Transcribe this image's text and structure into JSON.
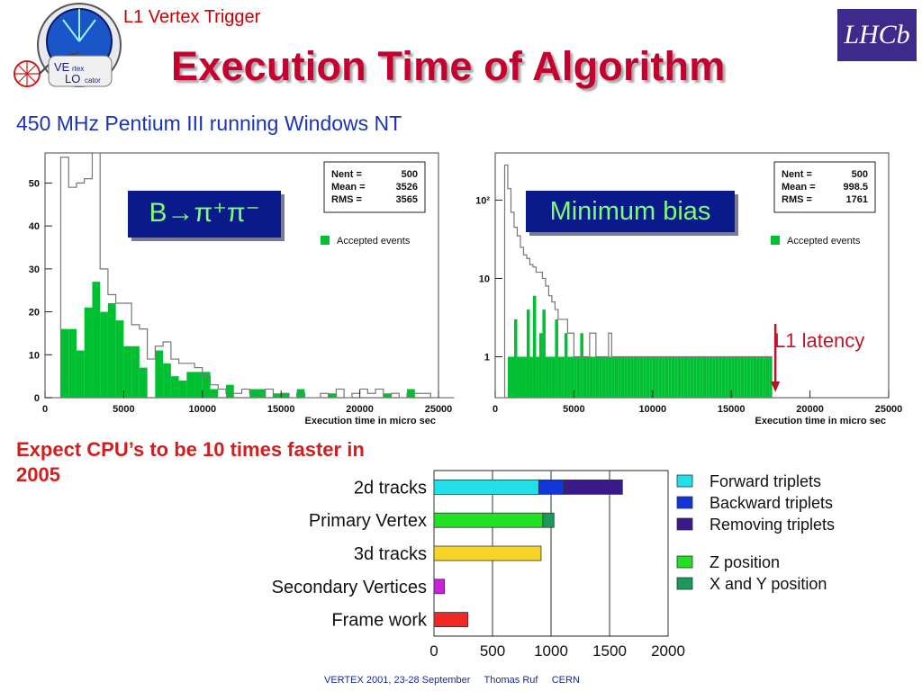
{
  "header": {
    "subtitle": "L1 Vertex Trigger",
    "title": "Execution Time of Algorithm",
    "logo_left_text": [
      "VE",
      "rtex",
      "LO",
      "cator"
    ],
    "logo_right_text": "LHCb"
  },
  "machine_note": "450 MHz Pentium III running Windows NT",
  "cpu_note": "Expect CPU’s to be 10 times faster in 2005",
  "latency_label": "L1 latency",
  "footer": "VERTEX 2001, 23-28 September     Thomas Ruf     CERN",
  "chart_data": [
    {
      "type": "bar",
      "subtype": "histogram",
      "panel_tag": "B→π⁺π⁻",
      "xlabel": "Execution time in micro sec",
      "xlim": [
        0,
        25000
      ],
      "ylim": [
        0,
        57
      ],
      "x_ticks": [
        "0",
        "5000",
        "10000",
        "15000",
        "20000",
        "25000"
      ],
      "y_ticks": [
        "0",
        "10",
        "20",
        "30",
        "40",
        "50"
      ],
      "stats": {
        "Nent": "500",
        "Mean": "3526",
        "RMS": "3565"
      },
      "legend": [
        "Accepted events"
      ],
      "colors": {
        "accepted": "#00c032",
        "outline": "#777777"
      },
      "bin_width": 500,
      "x_start": 0,
      "series": [
        {
          "name": "All events",
          "style": "outline",
          "values": [
            0,
            0,
            56,
            49,
            50,
            51,
            57,
            30,
            24,
            22,
            22,
            17,
            16,
            9,
            12,
            13,
            9,
            8,
            8,
            7,
            5,
            3,
            2,
            1,
            1,
            2,
            1,
            0,
            2,
            0,
            1,
            0,
            1,
            0,
            0,
            1,
            0,
            2,
            0,
            1,
            2,
            1,
            2,
            0,
            1,
            0,
            1,
            1,
            1,
            0,
            0,
            0
          ]
        },
        {
          "name": "Accepted events",
          "style": "fill",
          "values": [
            0,
            0,
            16,
            16,
            11,
            21,
            27,
            20,
            22,
            18,
            12,
            12,
            7,
            0,
            11,
            8,
            5,
            4,
            6,
            6,
            6,
            2,
            0,
            3,
            0,
            0,
            2,
            2,
            0,
            1,
            1,
            0,
            2,
            0,
            0,
            0,
            1,
            0,
            0,
            0,
            0,
            0,
            0,
            1,
            0,
            0,
            2,
            0,
            0,
            0,
            0,
            0
          ]
        }
      ]
    },
    {
      "type": "bar",
      "subtype": "histogram",
      "panel_tag": "Minimum bias",
      "xlabel": "Execution time in micro sec",
      "xlim": [
        0,
        25000
      ],
      "y_scale": "log",
      "ylim": [
        0.3,
        400
      ],
      "x_ticks": [
        "0",
        "5000",
        "10000",
        "15000",
        "20000",
        "25000"
      ],
      "y_ticks": [
        "1",
        "10",
        "10²"
      ],
      "stats": {
        "Nent": "500",
        "Mean": "998.5",
        "RMS": "1761"
      },
      "legend": [
        "Accepted events"
      ],
      "colors": {
        "accepted": "#00c032",
        "outline": "#777777"
      },
      "bin_width": 200,
      "x_start": 0,
      "series": [
        {
          "name": "All events",
          "style": "outline",
          "values": [
            0,
            0,
            0,
            280,
            140,
            70,
            45,
            35,
            25,
            20,
            18,
            15,
            14,
            12,
            12,
            10,
            8,
            6,
            5,
            4,
            3,
            3,
            3,
            2,
            2,
            1,
            1,
            1,
            1,
            1,
            2,
            2,
            1,
            1,
            1,
            1,
            2,
            1,
            1,
            1,
            1,
            1,
            1,
            1,
            1,
            1,
            1,
            1,
            1,
            1,
            1,
            1,
            1,
            1,
            1,
            1,
            1,
            1,
            1,
            1,
            1,
            1,
            1,
            1,
            1,
            1,
            1,
            1,
            1,
            1,
            1,
            1,
            1,
            1,
            1,
            1,
            1,
            1,
            1,
            1,
            1,
            1,
            1,
            1,
            1,
            1,
            1,
            1
          ]
        },
        {
          "name": "Accepted events",
          "style": "fill",
          "values": [
            0,
            0,
            0,
            0,
            1,
            1,
            3,
            1,
            1,
            1,
            4,
            1,
            6,
            1,
            2,
            4,
            1,
            1,
            1,
            3,
            1,
            1,
            2,
            1,
            1,
            1,
            1,
            2,
            1,
            1,
            1,
            1,
            1,
            1,
            1,
            1,
            1,
            1,
            1,
            1,
            1,
            1,
            1,
            1,
            1,
            1,
            1,
            1,
            1,
            1,
            1,
            1,
            1,
            1,
            1,
            1,
            1,
            1,
            1,
            1,
            1,
            1,
            1,
            1,
            1,
            1,
            1,
            1,
            1,
            1,
            1,
            1,
            1,
            1,
            1,
            1,
            1,
            1,
            1,
            1,
            1,
            1,
            1,
            1,
            1,
            1,
            1,
            1
          ]
        }
      ],
      "annotation": {
        "label": "L1 latency",
        "x": 17800
      }
    },
    {
      "type": "bar",
      "orientation": "horizontal",
      "stacked": true,
      "categories": [
        "2d tracks",
        "Primary Vertex",
        "3d tracks",
        "Secondary Vertices",
        "Frame work"
      ],
      "xlim": [
        0,
        2000
      ],
      "x_ticks": [
        "0",
        "500",
        "1000",
        "1500",
        "2000"
      ],
      "series": [
        {
          "name": "Forward triplets",
          "color": "#22e0ea",
          "values": [
            895,
            0,
            0,
            0,
            0
          ]
        },
        {
          "name": "Backward triplets",
          "color": "#1035d8",
          "values": [
            215,
            0,
            0,
            0,
            0
          ]
        },
        {
          "name": "Removing triplets",
          "color": "#3a1a8a",
          "values": [
            500,
            0,
            0,
            0,
            0
          ]
        },
        {
          "name": "Z position",
          "color": "#22e022",
          "values": [
            0,
            930,
            0,
            0,
            0
          ]
        },
        {
          "name": "X and Y position",
          "color": "#1a9a5a",
          "values": [
            0,
            95,
            0,
            0,
            0
          ]
        },
        {
          "name": "3d tracks",
          "color": "#f8d428",
          "values": [
            0,
            0,
            915,
            0,
            0
          ]
        },
        {
          "name": "Secondary Vertices",
          "color": "#c822d8",
          "values": [
            0,
            0,
            0,
            90,
            0
          ]
        },
        {
          "name": "Frame work",
          "color": "#f02828",
          "values": [
            0,
            0,
            0,
            0,
            290
          ]
        }
      ],
      "legend": [
        "Forward triplets",
        "Backward triplets",
        "Removing triplets",
        "Z position",
        "X and Y position"
      ]
    }
  ]
}
